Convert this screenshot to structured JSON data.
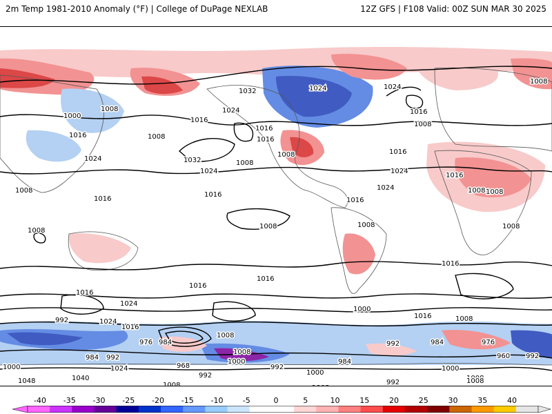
{
  "header": {
    "left_title": "2m Temp 1981-2010 Anomaly (°F) | College of DuPage NEXLAB",
    "right_title": "12Z GFS | F108 Valid: 00Z SUN MAR 30 2025"
  },
  "map": {
    "type": "global temperature anomaly with isobars",
    "isobar_labels": [
      "1032",
      "1024",
      "1024",
      "1008",
      "1000",
      "1008",
      "1016",
      "1016",
      "1008",
      "1024",
      "1016",
      "1008",
      "1024",
      "1016",
      "1016",
      "1008",
      "1016",
      "1008",
      "1032",
      "1024",
      "1008",
      "1016",
      "1008",
      "1016",
      "1024",
      "1016",
      "1008",
      "1008",
      "1008",
      "1008",
      "1008",
      "1016",
      "1016",
      "1024",
      "1024",
      "1016",
      "1016",
      "1000",
      "1016",
      "1008",
      "992",
      "1024",
      "1016",
      "976",
      "984",
      "1008",
      "1008",
      "992",
      "984",
      "976",
      "984",
      "992",
      "1024",
      "968",
      "1000",
      "992",
      "1000",
      "984",
      "1000",
      "1008",
      "960",
      "992",
      "1048",
      "1040",
      "1008",
      "992",
      "1024",
      "1016",
      "1008",
      "992",
      "1016",
      "1008",
      "1024",
      "1000",
      "1016"
    ],
    "colors": {
      "cold_extreme": "#7a0099",
      "cold_strong": "#1f3fb8",
      "cold_medium": "#4a78e0",
      "cold_light": "#a8c8f0",
      "warm_light": "#f7c1c1",
      "warm_medium": "#f08080",
      "warm_strong": "#d62828",
      "warm_extreme": "#8b0000",
      "land_border": "#555555",
      "isobar": "#000000"
    }
  },
  "colorbar": {
    "ticks": [
      "-40",
      "-35",
      "-30",
      "-25",
      "-20",
      "-15",
      "-10",
      "-5",
      "0",
      "5",
      "10",
      "15",
      "20",
      "25",
      "30",
      "35",
      "40"
    ],
    "segment_colors": [
      "#ff66ff",
      "#cc33ff",
      "#9900cc",
      "#660099",
      "#000099",
      "#0033cc",
      "#3366ff",
      "#6699ff",
      "#99ccff",
      "#cce5ff",
      "#ffffff",
      "#ffffff",
      "#ffd6d6",
      "#ffb3b3",
      "#ff8080",
      "#ff4d4d",
      "#e60000",
      "#b30000",
      "#800000",
      "#cc6600",
      "#ff9900",
      "#ffcc00",
      "#e6e6e6"
    ]
  }
}
